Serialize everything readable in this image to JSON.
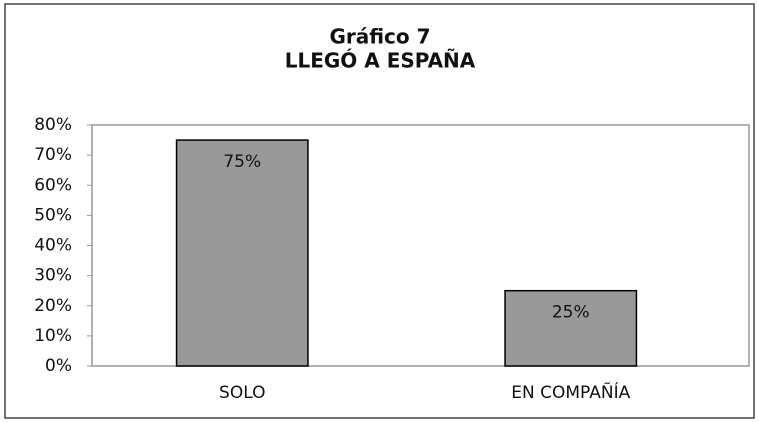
{
  "chart_data": {
    "type": "bar",
    "title": "Gráfico 7",
    "subtitle": "LLEGÓ A ESPAÑA",
    "categories": [
      "SOLO",
      "EN COMPAÑÍA"
    ],
    "values": [
      75,
      25
    ],
    "value_labels": [
      "75%",
      "25%"
    ],
    "color": "#999999",
    "ylim": [
      0,
      80
    ],
    "yticks": [
      {
        "value": 0,
        "label": "0%"
      },
      {
        "value": 10,
        "label": "10%"
      },
      {
        "value": 20,
        "label": "20%"
      },
      {
        "value": 30,
        "label": "30%"
      },
      {
        "value": 40,
        "label": "40%"
      },
      {
        "value": 50,
        "label": "50%"
      },
      {
        "value": 60,
        "label": "60%"
      },
      {
        "value": 70,
        "label": "70%"
      },
      {
        "value": 80,
        "label": "80%"
      }
    ],
    "grid": false
  }
}
